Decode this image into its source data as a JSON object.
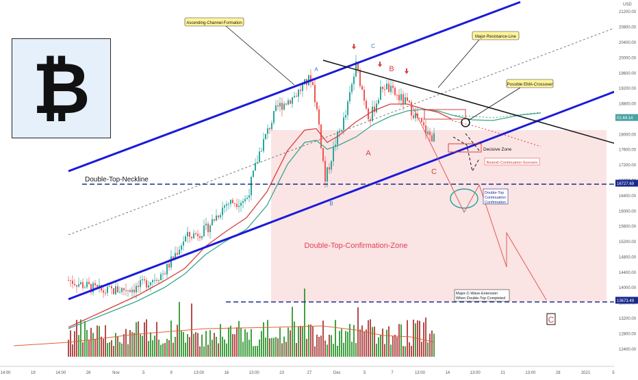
{
  "chart_data": {
    "type": "candlestick",
    "currency": "USD",
    "ylim": [
      12200,
      21400
    ],
    "y_ticks": [
      "21200.00",
      "20800.00",
      "20400.00",
      "20000.00",
      "19600.00",
      "19200.00",
      "18800.00",
      "18400.00",
      "18000.00",
      "17600.00",
      "17200.00",
      "16800.00",
      "16400.00",
      "16000.00",
      "15600.00",
      "15200.00",
      "14800.00",
      "14400.00",
      "14000.00",
      "13600.00",
      "13200.00",
      "12800.00",
      "12400.00"
    ],
    "x_ticks": [
      "14:00",
      "19",
      "14:00",
      "26",
      "Nov",
      "5",
      "9",
      "13:00",
      "16",
      "13:00",
      "23",
      "27",
      "Dec",
      "5",
      "7",
      "13:00",
      "14",
      "13:00",
      "21",
      "13:00",
      "28",
      "2021",
      "5"
    ],
    "price_tags": [
      {
        "value": 18441.14,
        "label": "01:44:14",
        "color": "#4ca3a3"
      },
      {
        "value": 16727.69,
        "label": "16727.69",
        "color": "#1a2a8c"
      },
      {
        "value": 13673.49,
        "label": "13673.49",
        "color": "#1a2a8c"
      }
    ],
    "levels": [
      {
        "name": "Double-Top-Neckline",
        "value": 16727.69
      },
      {
        "name": "Major-C-Wave-Extension",
        "value": 13673.49
      }
    ],
    "wave_labels": [
      "A",
      "B",
      "C",
      "A",
      "B",
      "C",
      "C"
    ],
    "series": [
      {
        "name": "EMA fast",
        "color": "#d93b3b"
      },
      {
        "name": "EMA slow",
        "color": "#3aa58a"
      }
    ]
  },
  "logo": {
    "glyph": "₿",
    "name": "bitcoin-logo"
  },
  "annotations": {
    "ascending_channel": "Ascending-Channel-Formation",
    "major_resistance": "Major-Resistance-Line",
    "possible_ema": "Possible EMA-Crossover",
    "decisive_zone": "Decisive Zone",
    "bearish_scenario": "Bearish-Continuation-Scenario",
    "double_top_neckline": "Double-Top-Neckline",
    "confirmation_zone": "Double-Top-Confirmation-Zone",
    "continuation_line1": "Double-Top",
    "continuation_line2": "Continuation",
    "continuation_line3": "Confirmation",
    "c_wave_line1": "Major-C-Wave-Extension",
    "c_wave_line2": "When Double-Top Completed",
    "big_c": "C"
  },
  "colors": {
    "up": "#26a69a",
    "down": "#ef5350",
    "channel": "#1a1adb",
    "zone": "#fbe1e1",
    "callout": "#fff59d"
  }
}
